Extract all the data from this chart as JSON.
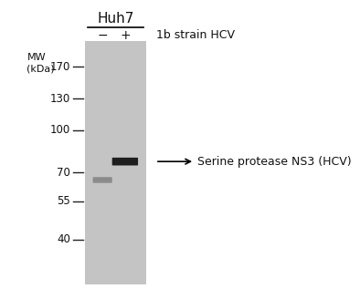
{
  "background_color": "#ffffff",
  "gel_color": "#c4c4c4",
  "title": "Huh7",
  "lane_labels": [
    "−",
    "+"
  ],
  "strain_label": "1b strain HCV",
  "mw_label": "MW\n(kDa)",
  "mw_ticks": [
    170,
    130,
    100,
    70,
    55,
    40
  ],
  "annotation_text": "Serine protease NS3 (HCV)",
  "title_fontsize": 11,
  "lane_fontsize": 10,
  "strain_fontsize": 9,
  "mw_label_fontsize": 8,
  "tick_label_fontsize": 8.5,
  "annotation_fontsize": 9
}
